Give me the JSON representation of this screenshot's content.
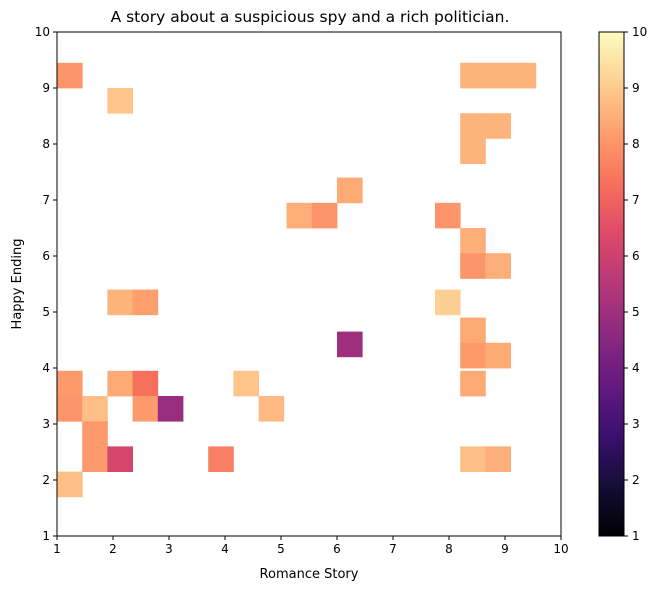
{
  "chart_data": {
    "type": "heatmap",
    "title": "A story about a suspicious spy and a rich politician.",
    "xlabel": "Romance Story",
    "ylabel": "Happy Ending",
    "xlim": [
      1,
      10
    ],
    "ylim": [
      1,
      10
    ],
    "xticks": [
      "1",
      "2",
      "3",
      "4",
      "5",
      "6",
      "7",
      "8",
      "9",
      "10"
    ],
    "yticks": [
      "1",
      "2",
      "3",
      "4",
      "5",
      "6",
      "7",
      "8",
      "9",
      "10"
    ],
    "bin_width": 0.45,
    "colormap": "magma",
    "colorbar": {
      "range": [
        1,
        10
      ],
      "ticks": [
        "1",
        "2",
        "3",
        "4",
        "5",
        "6",
        "7",
        "8",
        "9",
        "10"
      ]
    },
    "cells": [
      {
        "x": 1.0,
        "y": 9.0,
        "value": 8.0
      },
      {
        "x": 1.9,
        "y": 8.55,
        "value": 8.9
      },
      {
        "x": 8.2,
        "y": 9.0,
        "value": 8.6
      },
      {
        "x": 8.65,
        "y": 9.0,
        "value": 8.6
      },
      {
        "x": 9.1,
        "y": 9.0,
        "value": 8.6
      },
      {
        "x": 8.2,
        "y": 8.1,
        "value": 8.6
      },
      {
        "x": 8.65,
        "y": 8.1,
        "value": 8.6
      },
      {
        "x": 8.2,
        "y": 7.65,
        "value": 8.6
      },
      {
        "x": 6.0,
        "y": 6.95,
        "value": 8.4
      },
      {
        "x": 5.1,
        "y": 6.5,
        "value": 8.5
      },
      {
        "x": 5.55,
        "y": 6.5,
        "value": 8.0
      },
      {
        "x": 7.75,
        "y": 6.5,
        "value": 8.0
      },
      {
        "x": 8.2,
        "y": 6.05,
        "value": 8.5
      },
      {
        "x": 8.2,
        "y": 5.6,
        "value": 8.0
      },
      {
        "x": 8.65,
        "y": 5.6,
        "value": 8.5
      },
      {
        "x": 1.9,
        "y": 4.95,
        "value": 8.6
      },
      {
        "x": 2.35,
        "y": 4.95,
        "value": 8.2
      },
      {
        "x": 7.75,
        "y": 4.95,
        "value": 9.1
      },
      {
        "x": 8.2,
        "y": 4.45,
        "value": 8.4
      },
      {
        "x": 6.0,
        "y": 4.2,
        "value": 5.0
      },
      {
        "x": 8.2,
        "y": 4.0,
        "value": 8.1
      },
      {
        "x": 8.65,
        "y": 4.0,
        "value": 8.4
      },
      {
        "x": 1.0,
        "y": 3.5,
        "value": 8.1
      },
      {
        "x": 1.9,
        "y": 3.5,
        "value": 8.4
      },
      {
        "x": 2.35,
        "y": 3.5,
        "value": 7.3
      },
      {
        "x": 4.15,
        "y": 3.5,
        "value": 8.9
      },
      {
        "x": 8.2,
        "y": 3.5,
        "value": 8.4
      },
      {
        "x": 1.0,
        "y": 3.05,
        "value": 8.0
      },
      {
        "x": 1.45,
        "y": 3.05,
        "value": 8.8
      },
      {
        "x": 2.35,
        "y": 3.05,
        "value": 8.1
      },
      {
        "x": 2.8,
        "y": 3.05,
        "value": 4.9
      },
      {
        "x": 4.6,
        "y": 3.05,
        "value": 8.7
      },
      {
        "x": 1.45,
        "y": 2.6,
        "value": 8.1
      },
      {
        "x": 1.45,
        "y": 2.15,
        "value": 8.1
      },
      {
        "x": 1.9,
        "y": 2.15,
        "value": 6.2
      },
      {
        "x": 3.7,
        "y": 2.15,
        "value": 7.6
      },
      {
        "x": 8.2,
        "y": 2.15,
        "value": 8.8
      },
      {
        "x": 8.65,
        "y": 2.15,
        "value": 8.5
      },
      {
        "x": 1.0,
        "y": 1.7,
        "value": 8.8
      }
    ]
  }
}
